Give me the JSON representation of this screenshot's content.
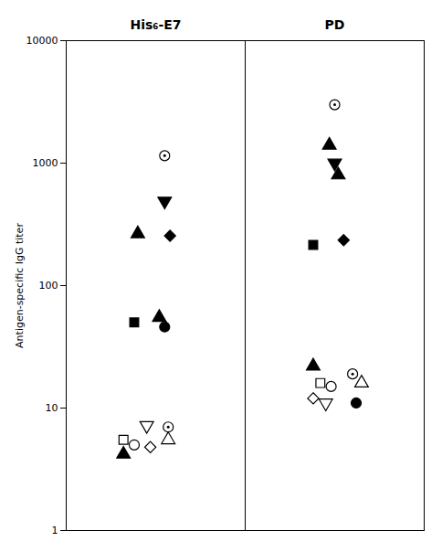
{
  "chart_data": {
    "type": "scatter",
    "ylabel": "Antigen-specific IgG titer",
    "log": "y",
    "xlim": [
      0.0,
      2.0
    ],
    "ylim": [
      1,
      10000
    ],
    "yticks": [
      1,
      10,
      100,
      1000,
      10000
    ],
    "tick_labels": "y",
    "grid": false,
    "legend": false,
    "color": "#000000",
    "divider_x": 1.0,
    "series": [
      {
        "name": "His₆-E7",
        "x": [
          0.55,
          0.55,
          0.4,
          0.58,
          0.38,
          0.52,
          0.55,
          0.45,
          0.57,
          0.32,
          0.38,
          0.47,
          0.57,
          0.32
        ],
        "values": [
          1150,
          490,
          265,
          255,
          50,
          55,
          46,
          7.2,
          7.0,
          5.5,
          5.0,
          4.8,
          5.5,
          4.2
        ],
        "markers": [
          "circle_dot",
          "triangle_down_filled",
          "triangle_up_filled",
          "diamond_filled",
          "square_filled",
          "triangle_up_filled",
          "circle_filled",
          "triangle_down_open",
          "circle_dot",
          "square_open",
          "circle_open",
          "diamond_open",
          "triangle_up_open",
          "triangle_up_filled"
        ]
      },
      {
        "name": "PD",
        "x": [
          1.5,
          1.47,
          1.5,
          1.52,
          1.38,
          1.55,
          1.38,
          1.42,
          1.48,
          1.6,
          1.65,
          1.38,
          1.45,
          1.62
        ],
        "values": [
          3000,
          1400,
          1000,
          800,
          215,
          235,
          22,
          16,
          15,
          19,
          16,
          12,
          11,
          11
        ],
        "markers": [
          "circle_dot",
          "triangle_up_filled",
          "triangle_down_filled",
          "triangle_up_filled",
          "square_filled",
          "diamond_filled",
          "triangle_up_filled",
          "square_open",
          "circle_open",
          "circle_dot",
          "triangle_up_open",
          "diamond_open",
          "triangle_down_open",
          "circle_filled"
        ]
      }
    ]
  }
}
